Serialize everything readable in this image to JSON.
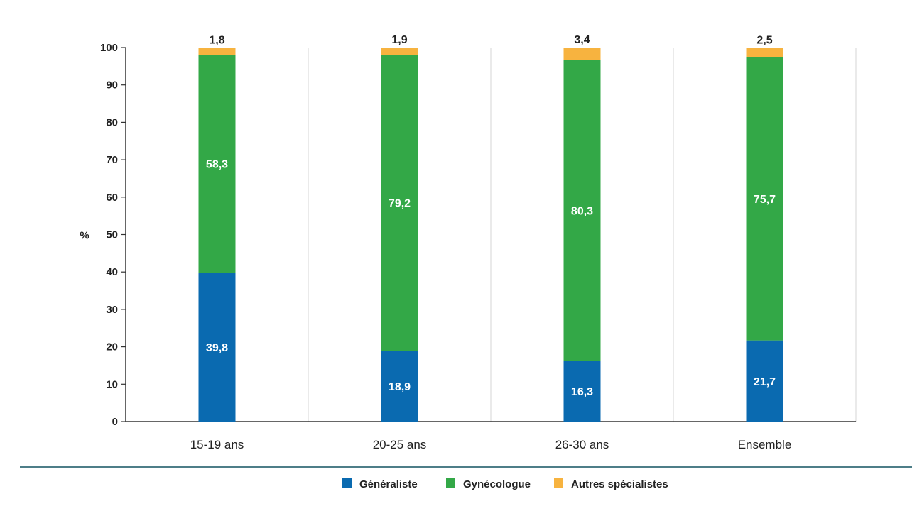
{
  "chart_data": {
    "type": "bar",
    "stacked": true,
    "title": "",
    "xlabel": "",
    "ylabel": "%",
    "ylim": [
      0,
      100
    ],
    "yticks": [
      0,
      10,
      20,
      30,
      40,
      50,
      60,
      70,
      80,
      90,
      100
    ],
    "categories": [
      "15-19 ans",
      "20-25 ans",
      "26-30 ans",
      "Ensemble"
    ],
    "series": [
      {
        "name": "Généraliste",
        "color": "#0a6ab0",
        "values": [
          39.8,
          18.9,
          16.3,
          21.7
        ],
        "labels": [
          "39,8",
          "18,9",
          "16,3",
          "21,7"
        ]
      },
      {
        "name": "Gynécologue",
        "color": "#33a847",
        "values": [
          58.3,
          79.2,
          80.3,
          75.7
        ],
        "labels": [
          "58,3",
          "79,2",
          "80,3",
          "75,7"
        ]
      },
      {
        "name": "Autres spécialistes",
        "color": "#f7b33f",
        "values": [
          1.8,
          1.9,
          3.4,
          2.5
        ],
        "labels": [
          "1,8",
          "1,9",
          "3,4",
          "2,5"
        ]
      }
    ],
    "legend_position": "bottom",
    "grid": "vertical-separators"
  }
}
